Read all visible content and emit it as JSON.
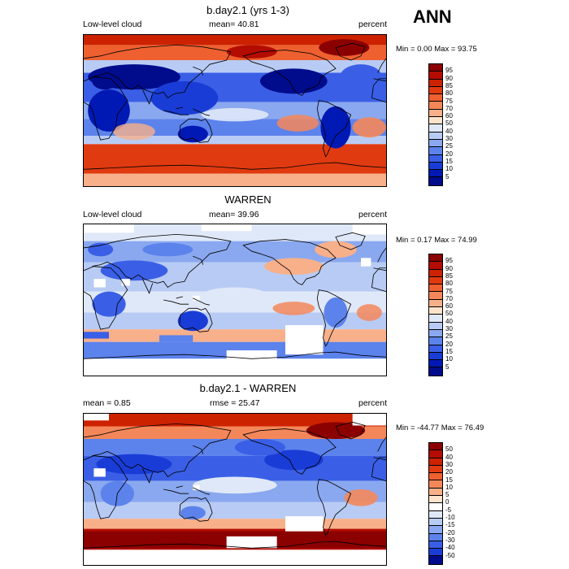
{
  "season": "ANN",
  "panels": [
    {
      "title": "b.day2.1 (yrs 1-3)",
      "left_label": "Low-level cloud",
      "center_label": "mean=  40.81",
      "right_label": "percent",
      "minmax": "Min =   0.00 Max =  93.75",
      "kind": "full"
    },
    {
      "title": "WARREN",
      "left_label": "Low-level cloud",
      "center_label": "mean=  39.96",
      "right_label": "percent",
      "minmax": "Min =   0.17 Max =  74.99",
      "kind": "obs"
    },
    {
      "title": "b.day2.1 - WARREN",
      "left_label": "mean =   0.85",
      "center_label": "rmse =  25.47",
      "right_label": "percent",
      "minmax": "Min = -44.77 Max =  76.49",
      "kind": "diff"
    }
  ],
  "colorbar_abs": {
    "labels": [
      "95",
      "90",
      "85",
      "80",
      "75",
      "70",
      "60",
      "50",
      "40",
      "30",
      "25",
      "20",
      "15",
      "10",
      "5"
    ],
    "colors": [
      "#8b0000",
      "#b40c00",
      "#cc2200",
      "#e03a10",
      "#ee6030",
      "#f4875a",
      "#f8b08a",
      "#fde3cc",
      "#dfe8f8",
      "#b8cbf4",
      "#8aa8ef",
      "#5c82ec",
      "#3a5fe6",
      "#1a3cd6",
      "#0019b4",
      "#000c8c"
    ]
  },
  "colorbar_diff": {
    "labels": [
      "50",
      "40",
      "30",
      "20",
      "15",
      "10",
      "5",
      "0",
      "-5",
      "-10",
      "-15",
      "-20",
      "-30",
      "-40",
      "-50"
    ],
    "colors": [
      "#8b0000",
      "#b40c00",
      "#cc2200",
      "#e03a10",
      "#ee6030",
      "#f4875a",
      "#f8b08a",
      "#fde3cc",
      "#ffffff",
      "#dfe8f8",
      "#b8cbf4",
      "#8aa8ef",
      "#5c82ec",
      "#3a5fe6",
      "#1a3cd6",
      "#000c8c"
    ]
  }
}
